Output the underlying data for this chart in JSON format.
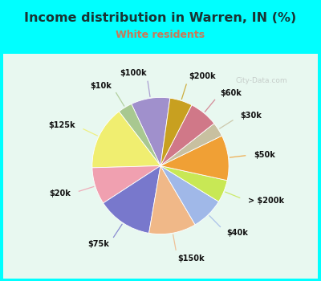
{
  "title": "Income distribution in Warren, IN (%)",
  "subtitle": "White residents",
  "title_color": "#1a3333",
  "subtitle_color": "#cc7755",
  "bg_cyan": "#00ffff",
  "bg_chart_color1": "#e8f8f0",
  "bg_chart_color2": "#c8f0e0",
  "watermark": "City-Data.com",
  "labels": [
    "$100k",
    "$10k",
    "$125k",
    "$20k",
    "$75k",
    "$150k",
    "$40k",
    "> $200k",
    "$50k",
    "$30k",
    "$60k",
    "$200k"
  ],
  "values": [
    9.5,
    3.5,
    15.5,
    9.0,
    13.5,
    11.5,
    8.0,
    5.5,
    11.0,
    3.5,
    7.0,
    5.5
  ],
  "colors": [
    "#a090cc",
    "#a8c890",
    "#f0ee70",
    "#f0a0b0",
    "#7878cc",
    "#f0b888",
    "#a0b8e8",
    "#c8e855",
    "#f0a035",
    "#c8c0a0",
    "#d07888",
    "#c8a020"
  ],
  "startangle": 82,
  "figsize": [
    4.0,
    3.5
  ],
  "dpi": 100,
  "label_fontsize": 7.0,
  "title_fontsize": 11.5,
  "subtitle_fontsize": 9.0
}
